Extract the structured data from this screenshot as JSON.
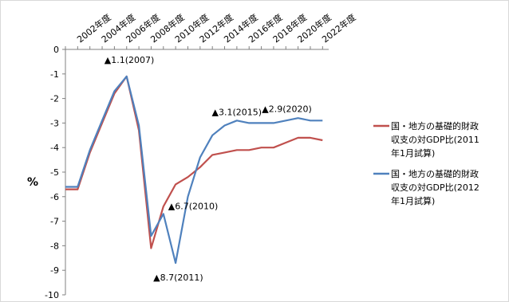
{
  "chart_data": {
    "type": "line",
    "ylabel": "%",
    "ylim": [
      -10,
      0
    ],
    "yticks": [
      "0",
      "-1",
      "-2",
      "-3",
      "-4",
      "-5",
      "-6",
      "-7",
      "-8",
      "-9",
      "-10"
    ],
    "xtick_labels": [
      "2002年度",
      "2004年度",
      "2006年度",
      "2008年度",
      "2010年度",
      "2012年度",
      "2014年度",
      "2016年度",
      "2018年度",
      "2020年度",
      "2022年度"
    ],
    "x": [
      2001,
      2002,
      2003,
      2004,
      2005,
      2006,
      2007,
      2008,
      2009,
      2010,
      2011,
      2012,
      2013,
      2014,
      2015,
      2016,
      2017,
      2018,
      2019,
      2020,
      2021,
      2022
    ],
    "series": [
      {
        "name": "国・地方の基礎的財政収支の対GDP比(2011年1月試算)",
        "name_lines": [
          "国・地方の基礎的財政",
          "収支の対GDP比(2011",
          "年1月試算)"
        ],
        "color": "#c0504d",
        "x_start": 2001,
        "values": [
          -5.7,
          -5.7,
          -4.2,
          -3.0,
          -1.8,
          -1.1,
          -3.3,
          -8.1,
          -6.4,
          -5.5,
          -5.2,
          -4.8,
          -4.3,
          -4.2,
          -4.1,
          -4.1,
          -4.0,
          -4.0,
          -3.8,
          -3.6,
          -3.6,
          -3.7
        ]
      },
      {
        "name": "国・地方の基礎的財政収支の対GDP比(2012年1月試算)",
        "name_lines": [
          "国・地方の基礎的財政",
          "収支の対GDP比(2012",
          "年1月試算)"
        ],
        "color": "#4f81bd",
        "x_start": 2001,
        "values": [
          -5.6,
          -5.6,
          -4.1,
          -2.9,
          -1.7,
          -1.1,
          -3.1,
          -7.6,
          -6.7,
          -8.7,
          -6.0,
          -4.4,
          -3.5,
          -3.1,
          -2.9,
          -3.0,
          -3.0,
          -3.0,
          -2.9,
          -2.8,
          -2.9,
          -2.9
        ]
      }
    ],
    "annotations": [
      {
        "text": "▲1.1(2007)",
        "x": 2006,
        "y": -1.1
      },
      {
        "text": "▲6.7(2010)",
        "x": 2009,
        "y": -6.7
      },
      {
        "text": "▲8.7(2011)",
        "x": 2010,
        "y": -8.7
      },
      {
        "text": "▲3.1(2015)",
        "x": 2014,
        "y": -3.1
      },
      {
        "text": "▲2.9(2020)",
        "x": 2019,
        "y": -2.9
      }
    ],
    "legend_position": "right"
  }
}
